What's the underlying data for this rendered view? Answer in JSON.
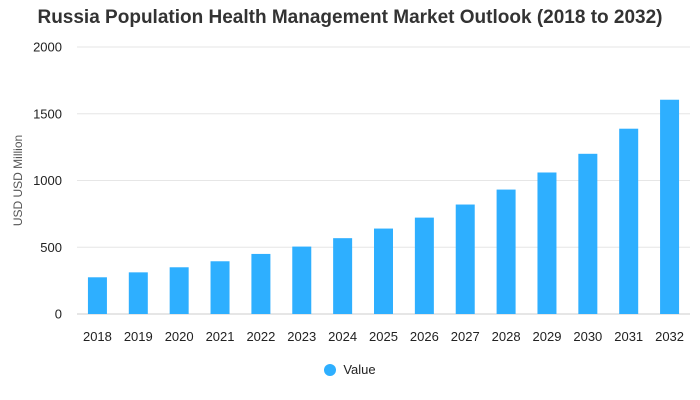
{
  "chart_data": {
    "type": "bar",
    "title": "Russia Population Health Management Market Outlook (2018 to 2032)",
    "xlabel": "",
    "ylabel": "USD USD Million",
    "ylim": [
      0,
      2000
    ],
    "yticks": [
      0,
      500,
      1000,
      1500,
      2000
    ],
    "grid": true,
    "legend_position": "bottom-center",
    "categories": [
      "2018",
      "2019",
      "2020",
      "2021",
      "2022",
      "2023",
      "2024",
      "2025",
      "2026",
      "2027",
      "2028",
      "2029",
      "2030",
      "2031",
      "2032"
    ],
    "series": [
      {
        "name": "Value",
        "color": "#2EAFFF",
        "values": [
          275,
          312,
          350,
          395,
          450,
          505,
          568,
          640,
          722,
          820,
          932,
          1060,
          1200,
          1388,
          1605
        ]
      }
    ]
  }
}
